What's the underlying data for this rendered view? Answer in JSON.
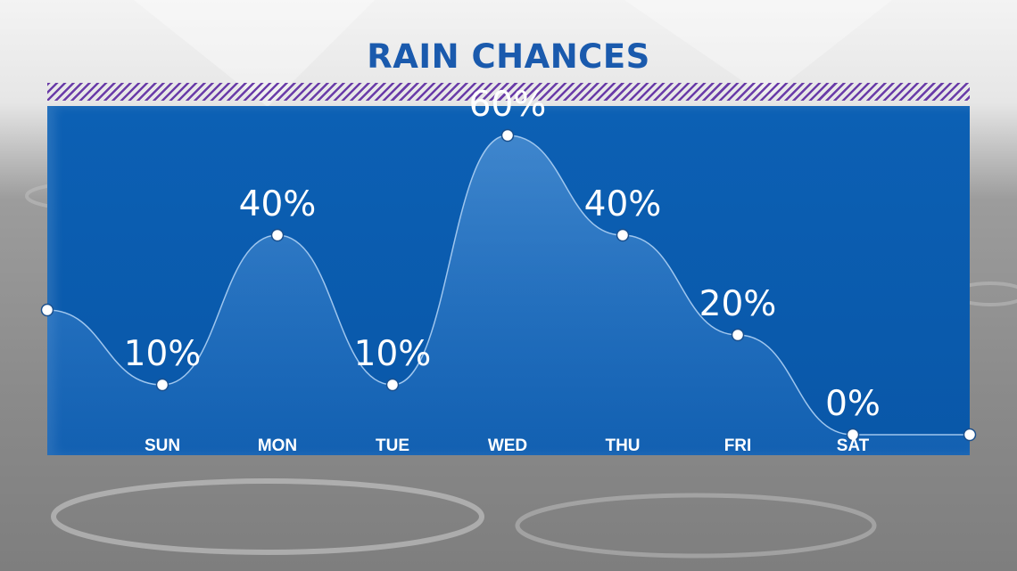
{
  "title": "RAIN CHANCES",
  "chart_data": {
    "type": "area",
    "title": "RAIN CHANCES",
    "categories": [
      "SUN",
      "MON",
      "TUE",
      "WED",
      "THU",
      "FRI",
      "SAT"
    ],
    "values": [
      10,
      40,
      10,
      60,
      40,
      20,
      0
    ],
    "value_labels": [
      "10%",
      "40%",
      "10%",
      "60%",
      "40%",
      "20%",
      "0%"
    ],
    "edge_values": {
      "left": 25,
      "right": 0
    },
    "ylim": [
      0,
      100
    ],
    "grid": false,
    "colors": {
      "panel": "#0b5cb0",
      "title": "#1a5aad",
      "hatch": "#6a3ca8",
      "line": "#9fc6ee"
    }
  }
}
